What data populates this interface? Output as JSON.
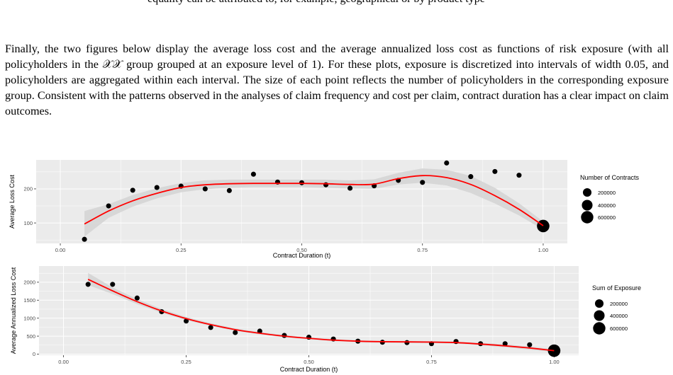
{
  "top_fragment": "equality can be attributed to, for example, geographical or by product type",
  "paragraph": "Finally, the two figures below display the average loss cost and the average annualized loss cost as functions of risk exposure (with all policyholders in the 𝒳𝒳 group grouped at an exposure level of 1). For these plots, exposure is discretized into intervals of width 0.05, and policyholders are aggregated within each interval. The size of each point reflects the number of policyholders in the corresponding exposure group. Consistent with the patterns observed in the analyses of claim frequency and cost per claim, contract duration has a clear impact on claim outcomes.",
  "colors": {
    "panel": "#ebebeb",
    "band": "#d6d6d6",
    "fit": "#ff0000",
    "point": "#000000",
    "grid": "#ffffff"
  },
  "chart_data": [
    {
      "type": "scatter",
      "xlabel": "Contract Duration (t)",
      "ylabel": "Average Loss Cost",
      "xlim": [
        -0.05,
        1.05
      ],
      "ylim": [
        40,
        285
      ],
      "x_ticks": [
        0.0,
        0.25,
        0.5,
        0.75,
        1.0
      ],
      "x_tick_labels": [
        "0.00",
        "0.25",
        "0.50",
        "0.75",
        "1.00"
      ],
      "y_ticks": [
        100,
        200
      ],
      "y_tick_labels": [
        "100",
        "200"
      ],
      "grid": true,
      "legend": {
        "title": "Number of Contracts",
        "placement": "right",
        "entries": [
          {
            "label": "200000",
            "value": 200000
          },
          {
            "label": "400000",
            "value": 400000
          },
          {
            "label": "600000",
            "value": 600000
          }
        ]
      },
      "points": [
        {
          "x": 0.05,
          "y": 52,
          "size": 20000
        },
        {
          "x": 0.1,
          "y": 150,
          "size": 20000
        },
        {
          "x": 0.15,
          "y": 196,
          "size": 20000
        },
        {
          "x": 0.2,
          "y": 204,
          "size": 20000
        },
        {
          "x": 0.25,
          "y": 208,
          "size": 20000
        },
        {
          "x": 0.3,
          "y": 200,
          "size": 20000
        },
        {
          "x": 0.35,
          "y": 195,
          "size": 20000
        },
        {
          "x": 0.4,
          "y": 243,
          "size": 20000
        },
        {
          "x": 0.45,
          "y": 220,
          "size": 20000
        },
        {
          "x": 0.5,
          "y": 218,
          "size": 20000
        },
        {
          "x": 0.55,
          "y": 212,
          "size": 20000
        },
        {
          "x": 0.6,
          "y": 202,
          "size": 20000
        },
        {
          "x": 0.65,
          "y": 209,
          "size": 20000
        },
        {
          "x": 0.7,
          "y": 225,
          "size": 20000
        },
        {
          "x": 0.75,
          "y": 219,
          "size": 20000
        },
        {
          "x": 0.8,
          "y": 276,
          "size": 20000
        },
        {
          "x": 0.85,
          "y": 236,
          "size": 20000
        },
        {
          "x": 0.9,
          "y": 251,
          "size": 20000
        },
        {
          "x": 0.95,
          "y": 240,
          "size": 20000
        },
        {
          "x": 1.0,
          "y": 91,
          "size": 620000
        }
      ],
      "fit": {
        "x": [
          0.05,
          0.1,
          0.15,
          0.2,
          0.25,
          0.3,
          0.35,
          0.4,
          0.45,
          0.5,
          0.55,
          0.6,
          0.65,
          0.7,
          0.75,
          0.8,
          0.85,
          0.9,
          0.95,
          1.0
        ],
        "y": [
          97,
          135,
          165,
          187,
          204,
          212,
          215,
          216,
          216,
          216,
          215,
          213,
          214,
          230,
          239,
          233,
          213,
          180,
          140,
          92
        ],
        "lower": [
          60,
          115,
          148,
          172,
          190,
          199,
          203,
          205,
          205,
          205,
          203,
          201,
          200,
          213,
          218,
          210,
          188,
          157,
          122,
          80
        ],
        "upper": [
          135,
          155,
          182,
          202,
          217,
          225,
          227,
          227,
          227,
          227,
          227,
          225,
          228,
          247,
          260,
          256,
          238,
          203,
          158,
          104
        ]
      }
    },
    {
      "type": "scatter",
      "xlabel": "Contract Duration (t)",
      "ylabel": "Average Annualized Loss Cost",
      "xlim": [
        -0.05,
        1.05
      ],
      "ylim": [
        -30,
        2450
      ],
      "x_ticks": [
        0.0,
        0.25,
        0.5,
        0.75,
        1.0
      ],
      "x_tick_labels": [
        "0.00",
        "0.25",
        "0.50",
        "0.75",
        "1.00"
      ],
      "y_ticks": [
        0,
        500,
        1000,
        1500,
        2000
      ],
      "y_tick_labels": [
        "0",
        "500",
        "1000",
        "1500",
        "2000"
      ],
      "grid": true,
      "legend": {
        "title": "Sum of Exposure",
        "placement": "right",
        "entries": [
          {
            "label": "200000",
            "value": 200000
          },
          {
            "label": "400000",
            "value": 400000
          },
          {
            "label": "600000",
            "value": 600000
          }
        ]
      },
      "points": [
        {
          "x": 0.05,
          "y": 1940,
          "size": 20000
        },
        {
          "x": 0.1,
          "y": 1940,
          "size": 20000
        },
        {
          "x": 0.15,
          "y": 1560,
          "size": 20000
        },
        {
          "x": 0.2,
          "y": 1180,
          "size": 20000
        },
        {
          "x": 0.25,
          "y": 920,
          "size": 20000
        },
        {
          "x": 0.3,
          "y": 740,
          "size": 20000
        },
        {
          "x": 0.35,
          "y": 600,
          "size": 20000
        },
        {
          "x": 0.4,
          "y": 640,
          "size": 20000
        },
        {
          "x": 0.45,
          "y": 520,
          "size": 20000
        },
        {
          "x": 0.5,
          "y": 470,
          "size": 20000
        },
        {
          "x": 0.55,
          "y": 420,
          "size": 20000
        },
        {
          "x": 0.6,
          "y": 360,
          "size": 20000
        },
        {
          "x": 0.65,
          "y": 330,
          "size": 20000
        },
        {
          "x": 0.7,
          "y": 320,
          "size": 20000
        },
        {
          "x": 0.75,
          "y": 290,
          "size": 20000
        },
        {
          "x": 0.8,
          "y": 350,
          "size": 20000
        },
        {
          "x": 0.85,
          "y": 290,
          "size": 20000
        },
        {
          "x": 0.9,
          "y": 290,
          "size": 20000
        },
        {
          "x": 0.95,
          "y": 260,
          "size": 20000
        },
        {
          "x": 1.0,
          "y": 95,
          "size": 620000
        }
      ],
      "fit": {
        "x": [
          0.05,
          0.1,
          0.15,
          0.2,
          0.25,
          0.3,
          0.35,
          0.4,
          0.45,
          0.5,
          0.55,
          0.6,
          0.65,
          0.7,
          0.75,
          0.8,
          0.85,
          0.9,
          0.95,
          1.0
        ],
        "y": [
          2080,
          1760,
          1460,
          1200,
          990,
          820,
          680,
          580,
          500,
          440,
          390,
          360,
          345,
          340,
          335,
          320,
          280,
          230,
          170,
          95
        ],
        "lower": [
          1920,
          1670,
          1390,
          1145,
          945,
          780,
          645,
          548,
          470,
          412,
          364,
          335,
          320,
          313,
          306,
          290,
          245,
          190,
          125,
          60
        ],
        "upper": [
          2260,
          1855,
          1530,
          1255,
          1035,
          860,
          715,
          612,
          530,
          468,
          416,
          385,
          370,
          367,
          364,
          350,
          315,
          270,
          215,
          130
        ]
      }
    }
  ]
}
